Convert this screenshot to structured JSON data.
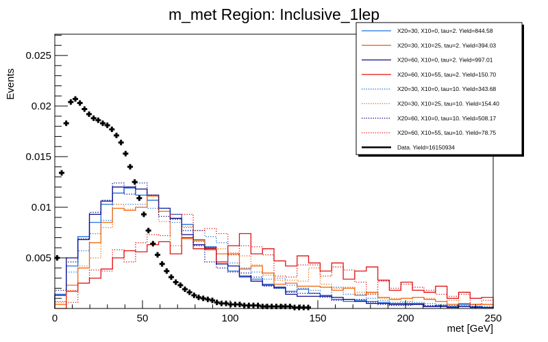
{
  "chart_data": {
    "type": "line",
    "subtype": "step-histogram",
    "title": "m_met Region: Inclusive_1lep",
    "xlabel": "met [GeV]",
    "ylabel": "Events",
    "xlim": [
      0,
      250
    ],
    "ylim": [
      0,
      0.0271
    ],
    "grid": false,
    "legend_position": "top-right",
    "x_ticks": [
      {
        "value": 0,
        "label": "0"
      },
      {
        "value": 50,
        "label": "50"
      },
      {
        "value": 100,
        "label": "100"
      },
      {
        "value": 150,
        "label": "150"
      },
      {
        "value": 200,
        "label": "200"
      },
      {
        "value": 250,
        "label": "250"
      }
    ],
    "y_ticks": [
      {
        "value": 0.005,
        "label": "0.005"
      },
      {
        "value": 0.01,
        "label": "0.01"
      },
      {
        "value": 0.015,
        "label": "0.015"
      },
      {
        "value": 0.02,
        "label": "0.02"
      },
      {
        "value": 0.025,
        "label": "0.025"
      }
    ],
    "hist_bins": 38,
    "series": [
      {
        "name": "X20=30, X10=0, tau=2. Yield=844.58",
        "color": "#1f6fe0",
        "style": "solid",
        "values": [
          0.0014,
          0.0042,
          0.0071,
          0.0085,
          0.0103,
          0.0114,
          0.0119,
          0.0112,
          0.0107,
          0.0099,
          0.0093,
          0.0083,
          0.0068,
          0.0061,
          0.0044,
          0.0037,
          0.0031,
          0.0029,
          0.0024,
          0.002,
          0.0017,
          0.0019,
          0.0015,
          0.0013,
          0.0009,
          0.0007,
          0.0008,
          0.0007,
          0.0006,
          0.0005,
          0.0005,
          0.0005,
          0.0002,
          0.0003,
          0.0002,
          0.0004,
          0.0002,
          0.0001
        ]
      },
      {
        "name": "X20=30, X10=25, tau=2. Yield=394.03",
        "color": "#f06a10",
        "style": "solid",
        "values": [
          0.0004,
          0.0023,
          0.004,
          0.0065,
          0.0085,
          0.0099,
          0.0097,
          0.01,
          0.0111,
          0.0096,
          0.0089,
          0.0069,
          0.0067,
          0.0058,
          0.0054,
          0.0054,
          0.0039,
          0.0042,
          0.0035,
          0.0024,
          0.0025,
          0.0022,
          0.0022,
          0.0021,
          0.0018,
          0.002,
          0.0013,
          0.0016,
          0.0011,
          0.0009,
          0.001,
          0.0011,
          0.0009,
          0.0007,
          0.0004,
          0.0005,
          0.0004,
          0.0004
        ]
      },
      {
        "name": "X20=60, X10=0, tau=2. Yield=997.01",
        "color": "#0a0a8c",
        "style": "solid",
        "values": [
          0.0013,
          0.005,
          0.0068,
          0.0093,
          0.0106,
          0.012,
          0.012,
          0.0118,
          0.0112,
          0.0099,
          0.0089,
          0.0073,
          0.0063,
          0.006,
          0.0044,
          0.0042,
          0.0032,
          0.0027,
          0.0023,
          0.0021,
          0.0014,
          0.0012,
          0.0012,
          0.0012,
          0.0011,
          0.0009,
          0.0007,
          0.0005,
          0.0005,
          0.0004,
          0.0004,
          0.0004,
          0.0002,
          0.0002,
          0.0001,
          0.0002,
          0.0001,
          0.0001
        ]
      },
      {
        "name": "X20=60, X10=55, tau=2. Yield=150.70",
        "color": "#e01010",
        "style": "solid",
        "values": [
          0.0,
          0.0017,
          0.0025,
          0.003,
          0.0039,
          0.005,
          0.0057,
          0.0056,
          0.0063,
          0.0066,
          0.0054,
          0.007,
          0.0059,
          0.0059,
          0.0046,
          0.0062,
          0.0074,
          0.0054,
          0.0059,
          0.0047,
          0.0042,
          0.0052,
          0.0045,
          0.0037,
          0.0045,
          0.0029,
          0.0037,
          0.0041,
          0.0028,
          0.0018,
          0.0026,
          0.0018,
          0.0016,
          0.0022,
          0.001,
          0.0016,
          0.001,
          0.0011
        ]
      },
      {
        "name": "X20=30, X10=0, tau=10. Yield=343.68",
        "color": "#1f6fe0",
        "style": "dotted",
        "values": [
          0.0014,
          0.0036,
          0.0057,
          0.0074,
          0.0087,
          0.0103,
          0.0103,
          0.0103,
          0.0099,
          0.0099,
          0.0085,
          0.008,
          0.0077,
          0.0071,
          0.0065,
          0.0045,
          0.004,
          0.0036,
          0.0029,
          0.003,
          0.0023,
          0.002,
          0.0018,
          0.0013,
          0.0021,
          0.0014,
          0.0014,
          0.001,
          0.0008,
          0.0006,
          0.0006,
          0.0006,
          0.0005,
          0.0004,
          0.0003,
          0.0003,
          0.0002,
          0.0002
        ]
      },
      {
        "name": "X20=30, X10=25, tau=10. Yield=154.40",
        "color": "#f06a10",
        "style": "dotted",
        "values": [
          0.0006,
          0.0018,
          0.0042,
          0.005,
          0.008,
          0.0103,
          0.0098,
          0.01,
          0.0112,
          0.0086,
          0.0062,
          0.0081,
          0.0066,
          0.006,
          0.0059,
          0.0055,
          0.0052,
          0.0043,
          0.0033,
          0.0028,
          0.0028,
          0.0027,
          0.004,
          0.0024,
          0.002,
          0.0021,
          0.0016,
          0.0015,
          0.001,
          0.001,
          0.0007,
          0.0011,
          0.001,
          0.0007,
          0.0008,
          0.0005,
          0.0004,
          0.0004
        ]
      },
      {
        "name": "X20=60, X10=0, tau=10. Yield=508.17",
        "color": "#0a0a8c",
        "style": "dotted",
        "values": [
          0.0018,
          0.0046,
          0.0069,
          0.0095,
          0.0107,
          0.0124,
          0.0113,
          0.0124,
          0.0112,
          0.0091,
          0.0088,
          0.0077,
          0.0062,
          0.0046,
          0.004,
          0.0036,
          0.0035,
          0.0031,
          0.0022,
          0.002,
          0.0016,
          0.0015,
          0.0015,
          0.0011,
          0.0008,
          0.0009,
          0.0009,
          0.0006,
          0.0004,
          0.0003,
          0.0003,
          0.0004,
          0.0003,
          0.0002,
          0.0002,
          0.0002,
          0.0002,
          0.0001
        ]
      },
      {
        "name": "X20=60, X10=55, tau=10. Yield=78.75",
        "color": "#e01010",
        "style": "dotted",
        "values": [
          0.0007,
          0.0006,
          0.0025,
          0.0038,
          0.0037,
          0.0058,
          0.0046,
          0.0065,
          0.0073,
          0.0072,
          0.0093,
          0.0093,
          0.0077,
          0.0079,
          0.0074,
          0.0053,
          0.0062,
          0.0061,
          0.0053,
          0.0032,
          0.0031,
          0.0043,
          0.0043,
          0.0032,
          0.0041,
          0.0038,
          0.0026,
          0.0014,
          0.0027,
          0.002,
          0.0024,
          0.0021,
          0.0018,
          0.0014,
          0.0012,
          0.0014,
          0.0004,
          0.0008
        ]
      },
      {
        "name": "Data. Yield=16150934",
        "color": "#000000",
        "style": "markers",
        "bin_width": 2.604,
        "values": [
          0.005,
          0.0134,
          0.0183,
          0.0204,
          0.0207,
          0.0203,
          0.0197,
          0.0192,
          0.0188,
          0.0186,
          0.0183,
          0.0181,
          0.0177,
          0.0171,
          0.0164,
          0.0153,
          0.014,
          0.0125,
          0.0109,
          0.0093,
          0.0077,
          0.0064,
          0.0053,
          0.0044,
          0.0037,
          0.0031,
          0.0026,
          0.0023,
          0.0019,
          0.0016,
          0.0013,
          0.0011,
          0.001,
          0.0009,
          0.0008,
          0.0006,
          0.0005,
          0.0005,
          0.0004,
          0.0004,
          0.0004,
          0.0003,
          0.0003,
          0.0003,
          0.0003,
          0.0002,
          0.0002,
          0.0002,
          0.0002,
          0.0002,
          0.0002,
          0.0002,
          0.0001,
          0.0001,
          0.0001,
          0.0001
        ]
      }
    ]
  }
}
